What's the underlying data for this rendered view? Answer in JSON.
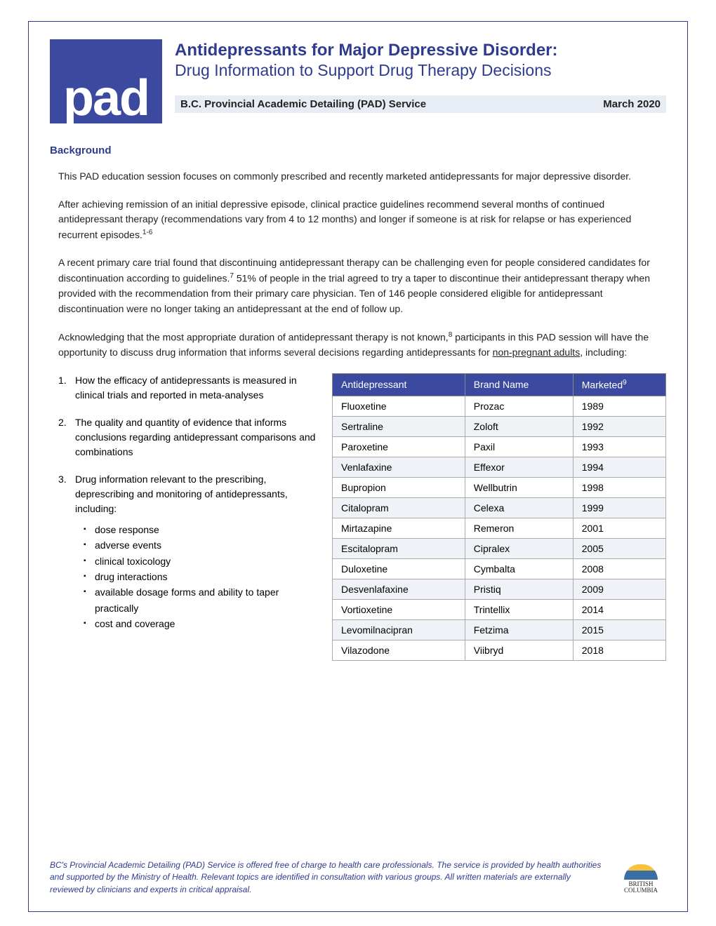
{
  "logo": {
    "text": "pad"
  },
  "header": {
    "title_main": "Antidepressants for Major Depressive Disorder:",
    "title_sub": "Drug Information to Support Drug Therapy Decisions",
    "service_name": "B.C. Provincial Academic Detailing (PAD) Service",
    "date": "March 2020"
  },
  "section_heading": "Background",
  "paragraphs": {
    "p1": "This PAD education session focuses on commonly prescribed and recently marketed antidepressants for major depressive disorder.",
    "p2_a": "After achieving remission of an initial depressive episode, clinical practice guidelines recommend several months of continued antidepressant therapy (recommendations vary from 4 to 12 months) and longer if someone is at risk for relapse or has experienced recurrent episodes.",
    "p2_sup": "1-6",
    "p3_a": "A recent primary care trial found that discontinuing antidepressant therapy can be challenging even for people considered candidates for discontinuation according to guidelines.",
    "p3_sup": "7",
    "p3_b": " 51% of people in the trial agreed to try a taper to discontinue their antidepressant therapy when provided with the recommendation from their primary care physician. Ten of 146 people considered eligible for antidepressant discontinuation were no longer taking an antidepressant at the end of follow up.",
    "p4_a": "Acknowledging that the most appropriate duration of antidepressant therapy is not known,",
    "p4_sup": "8",
    "p4_b": " participants in this PAD session will have the opportunity to discuss drug information that informs several decisions regarding antidepressants for ",
    "p4_u": "non-pregnant adults",
    "p4_c": ", including:"
  },
  "numbered_list": [
    {
      "text": "How the efficacy of antidepressants is measured in clinical trials and reported in meta-analyses"
    },
    {
      "text": "The quality and quantity of evidence that informs conclusions regarding antidepressant comparisons and combinations"
    },
    {
      "text": "Drug information relevant to the prescribing, deprescribing and monitoring of antidepressants, including:",
      "sub": [
        "dose response",
        "adverse events",
        "clinical toxicology",
        "drug interactions",
        "available dosage forms and ability to taper practically",
        "cost and coverage"
      ]
    }
  ],
  "table": {
    "columns": [
      "Antidepressant",
      "Brand Name",
      "Marketed"
    ],
    "header_sup": "9",
    "rows": [
      [
        "Fluoxetine",
        "Prozac",
        "1989"
      ],
      [
        "Sertraline",
        "Zoloft",
        "1992"
      ],
      [
        "Paroxetine",
        "Paxil",
        "1993"
      ],
      [
        "Venlafaxine",
        "Effexor",
        "1994"
      ],
      [
        "Bupropion",
        "Wellbutrin",
        "1998"
      ],
      [
        "Citalopram",
        "Celexa",
        "1999"
      ],
      [
        "Mirtazapine",
        "Remeron",
        "2001"
      ],
      [
        "Escitalopram",
        "Cipralex",
        "2005"
      ],
      [
        "Duloxetine",
        "Cymbalta",
        "2008"
      ],
      [
        "Desvenlafaxine",
        "Pristiq",
        "2009"
      ],
      [
        "Vortioxetine",
        "Trintellix",
        "2014"
      ],
      [
        "Levomilnacipran",
        "Fetzima",
        "2015"
      ],
      [
        "Vilazodone",
        "Viibryd",
        "2018"
      ]
    ],
    "header_bg": "#3b4a9f",
    "header_fg": "#ffffff",
    "row_alt_bg": "#eff3f8",
    "border_color": "#aaaaaa"
  },
  "footer": {
    "lead": "BC's Provincial Academic Detailing (PAD) Service",
    "rest": " is offered free of charge to health care professionals. The service is provided by health authorities and supported by the Ministry of Health. Relevant topics are identified in consultation with various groups. All written materials are externally reviewed by clinicians and experts in critical appraisal.",
    "bc_line1": "BRITISH",
    "bc_line2": "COLUMBIA"
  },
  "colors": {
    "brand_blue": "#2e3b8f",
    "logo_blue": "#3b4a9f",
    "bar_bg": "#e8ecf4"
  }
}
